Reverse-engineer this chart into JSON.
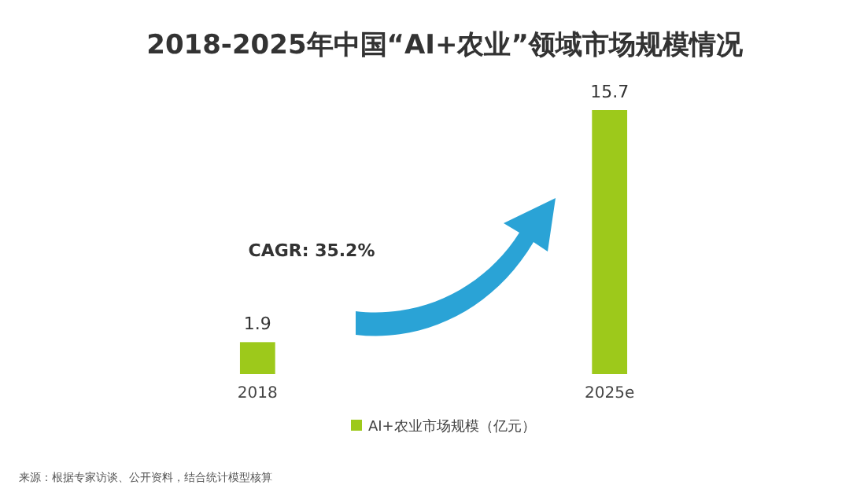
{
  "chart_data": {
    "type": "bar",
    "title": "2018-2025年中国“AI+农业”领域市场规模情况",
    "categories": [
      "2018",
      "2025e"
    ],
    "series": [
      {
        "name": "AI+农业市场规模（亿元）",
        "color": "#9dc91b",
        "values": [
          1.9,
          15.7
        ]
      }
    ],
    "data_labels": true,
    "legend": "bottom",
    "grid": false,
    "annotations": [
      "CAGR: 35.2%",
      "来源：根据专家访谈、公开资料，结合统计模型核算"
    ]
  }
}
